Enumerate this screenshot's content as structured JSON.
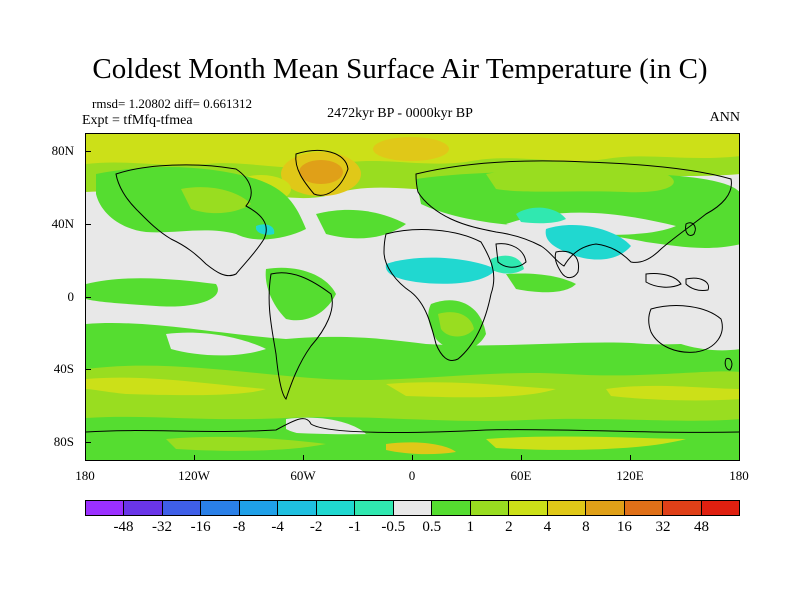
{
  "title": "Coldest Month Mean Surface Air Temperature (in C)",
  "stats": "rmsd= 1.20802 diff= 0.661312",
  "experiment": "Expt = tfMfq-tfmea",
  "period": "2472kyr BP - 0000kyr BP",
  "season": "ANN",
  "lat_labels": [
    "80N",
    "40N",
    "0",
    "40S",
    "80S"
  ],
  "lon_labels": [
    "180",
    "120W",
    "60W",
    "0",
    "60E",
    "120E",
    "180"
  ],
  "colorbar": {
    "labels": [
      "-48",
      "-32",
      "-16",
      "-8",
      "-4",
      "-2",
      "-1",
      "-0.5",
      "0.5",
      "1",
      "2",
      "4",
      "8",
      "16",
      "32",
      "48"
    ],
    "colors": [
      "#9b30ff",
      "#6a35e8",
      "#3f5fe8",
      "#2a80e8",
      "#1fa0e8",
      "#1fc0e0",
      "#20d8d0",
      "#30e8b0",
      "#e8e8e8",
      "#55dd30",
      "#99dd20",
      "#cce018",
      "#e0c818",
      "#e0a018",
      "#e07018",
      "#e04018",
      "#e02010"
    ]
  },
  "legend_colors": {
    "neutral": "#e8e8e8",
    "light_green": "#55dd30",
    "yellow_green": "#99dd20",
    "yellow": "#cce018",
    "gold": "#e0c818",
    "orange": "#e0a018",
    "cyan": "#20d8d0",
    "teal": "#30e8b0",
    "coast": "#000000"
  }
}
